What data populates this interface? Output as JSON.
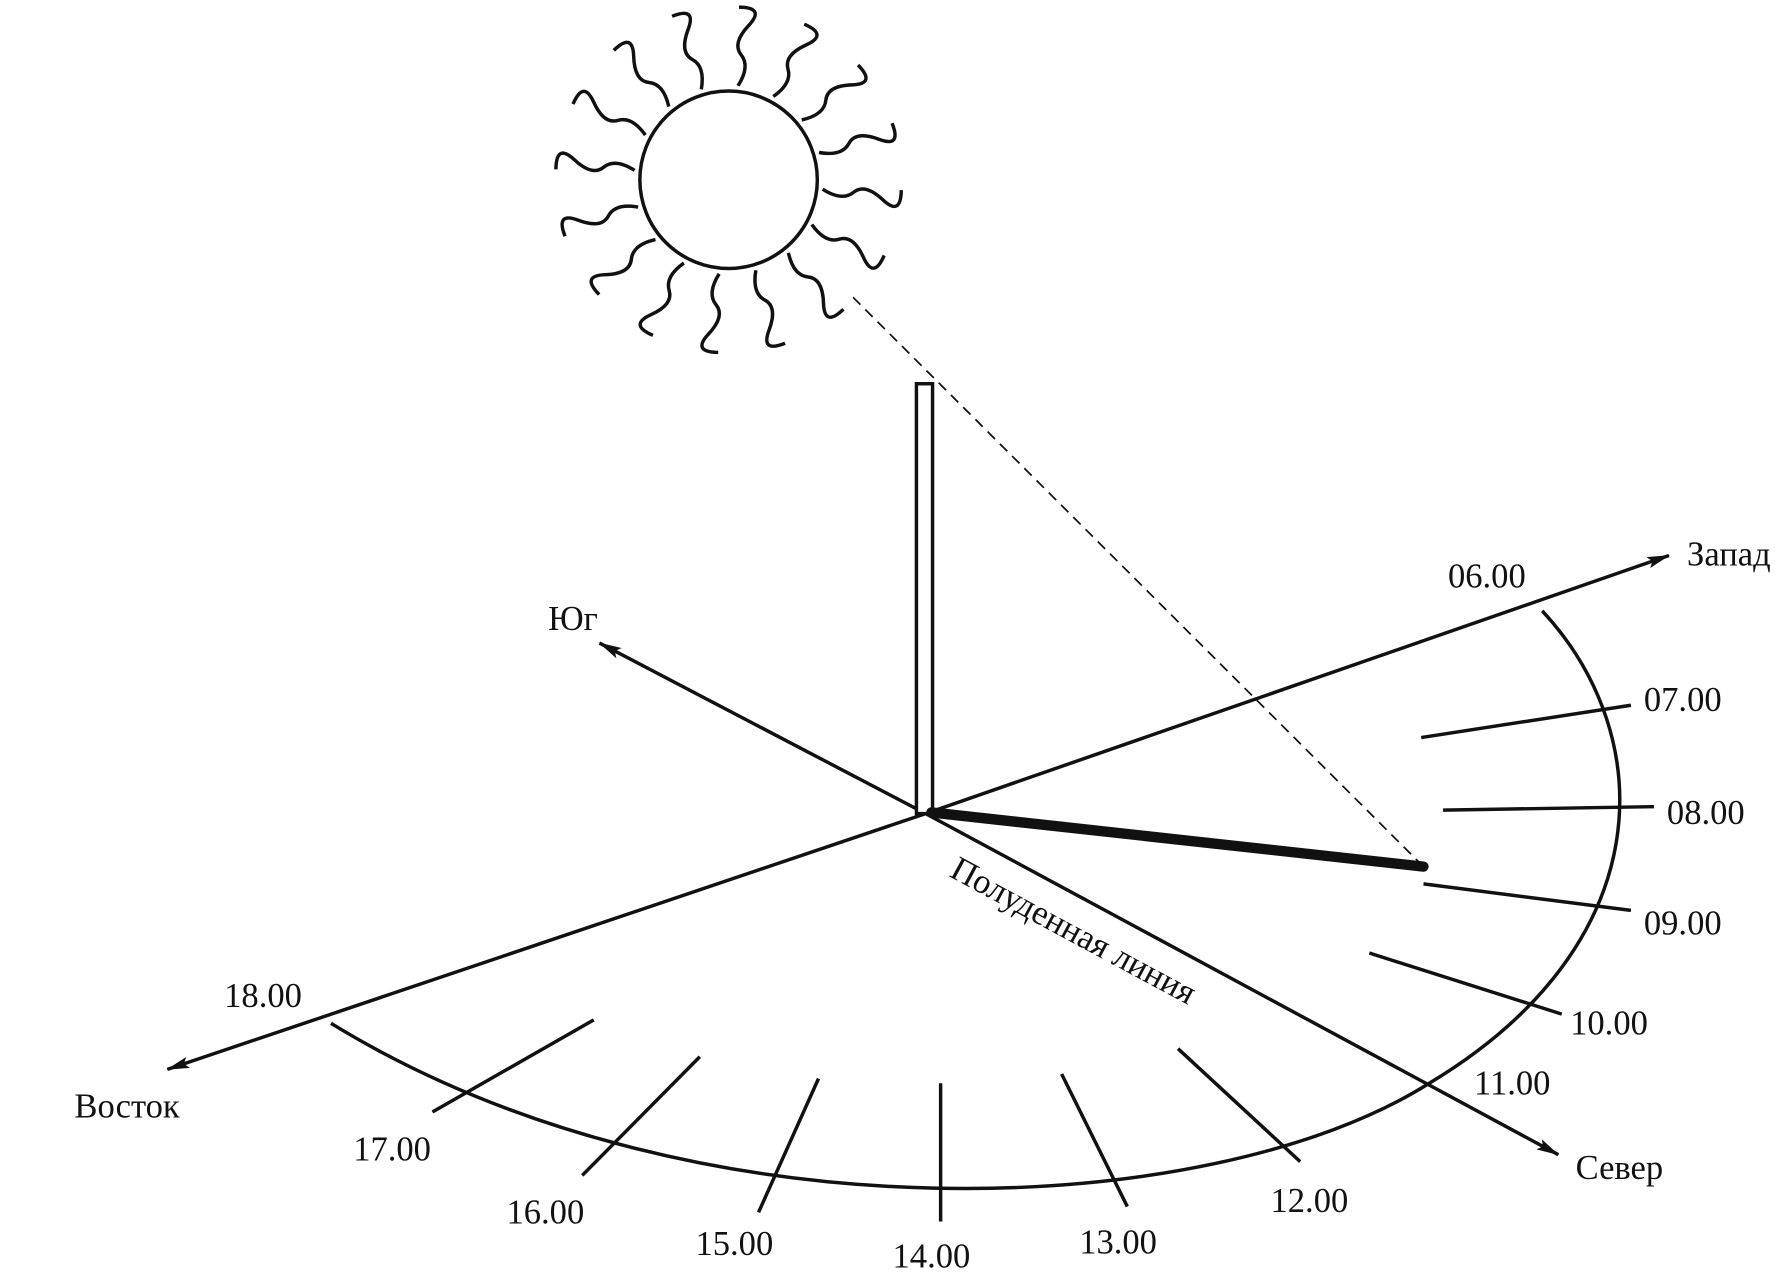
{
  "directions": [
    "Юг",
    "Запад",
    "Север",
    "Восток"
  ],
  "noon_line": "Полуденная линия",
  "hours": [
    "06.00",
    "07.00",
    "08.00",
    "09.00",
    "10.00",
    "11.00",
    "12.00",
    "13.00",
    "14.00",
    "15.00",
    "16.00",
    "17.00",
    "18.00"
  ]
}
